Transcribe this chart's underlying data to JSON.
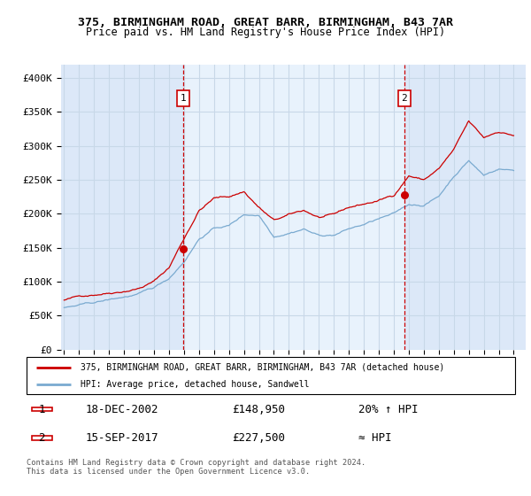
{
  "title": "375, BIRMINGHAM ROAD, GREAT BARR, BIRMINGHAM, B43 7AR",
  "subtitle": "Price paid vs. HM Land Registry's House Price Index (HPI)",
  "background_color": "#ffffff",
  "plot_bg_color": "#dce8f8",
  "grid_color": "#c8d8e8",
  "shade_between_color": "#e8f2fc",
  "ylim": [
    0,
    420000
  ],
  "yticks": [
    0,
    50000,
    100000,
    150000,
    200000,
    250000,
    300000,
    350000,
    400000
  ],
  "ytick_labels": [
    "£0",
    "£50K",
    "£100K",
    "£150K",
    "£200K",
    "£250K",
    "£300K",
    "£350K",
    "£400K"
  ],
  "marker1_date": "18-DEC-2002",
  "marker1_price": 148950,
  "marker1_hpi_note": "20% ↑ HPI",
  "marker1_x": 2002.96,
  "marker1_y": 148950,
  "marker2_date": "15-SEP-2017",
  "marker2_price": 227500,
  "marker2_hpi_note": "≈ HPI",
  "marker2_x": 2017.71,
  "marker2_y": 227500,
  "legend_line1": "375, BIRMINGHAM ROAD, GREAT BARR, BIRMINGHAM, B43 7AR (detached house)",
  "legend_line2": "HPI: Average price, detached house, Sandwell",
  "footer": "Contains HM Land Registry data © Crown copyright and database right 2024.\nThis data is licensed under the Open Government Licence v3.0.",
  "red_line_color": "#cc0000",
  "blue_line_color": "#7aaad0",
  "xlim_start": 1994.8,
  "xlim_end": 2025.8
}
